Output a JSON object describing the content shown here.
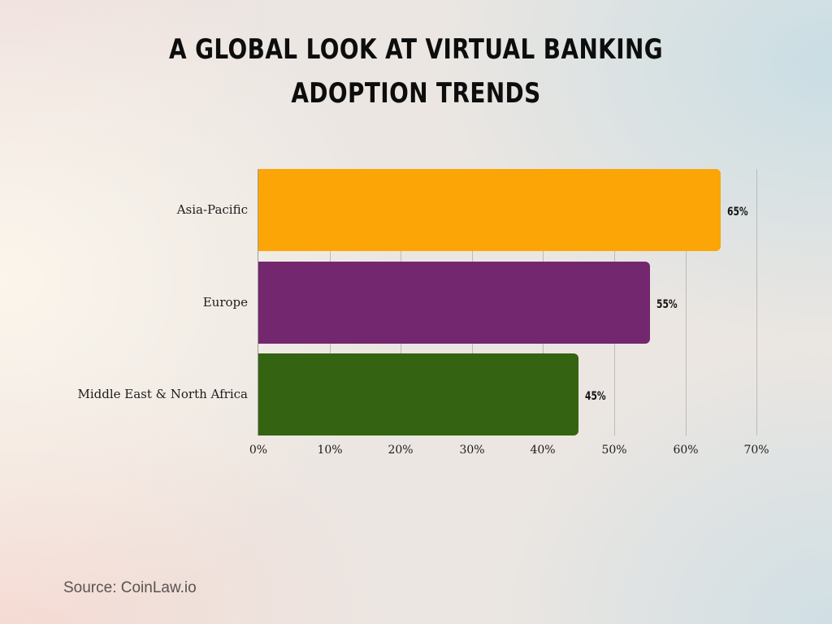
{
  "title": "A Global Look at Virtual Banking Adoption Trends",
  "source": "Source: CoinLaw.io",
  "chart_data": {
    "type": "bar",
    "orientation": "horizontal",
    "title": "A Global Look at Virtual Banking Adoption Trends",
    "categories": [
      "Asia-Pacific",
      "Europe",
      "Middle East & North Africa"
    ],
    "values": [
      65,
      55,
      45
    ],
    "value_labels": [
      "65%",
      "55%",
      "45%"
    ],
    "colors": [
      "#FBA507",
      "#73276E",
      "#346311"
    ],
    "xlabel": "",
    "ylabel": "",
    "xlim": [
      0,
      70
    ],
    "x_ticks": [
      "0%",
      "10%",
      "20%",
      "30%",
      "40%",
      "50%",
      "60%",
      "70%"
    ],
    "grid": "vertical",
    "legend": "none",
    "source": "Source: CoinLaw.io"
  }
}
